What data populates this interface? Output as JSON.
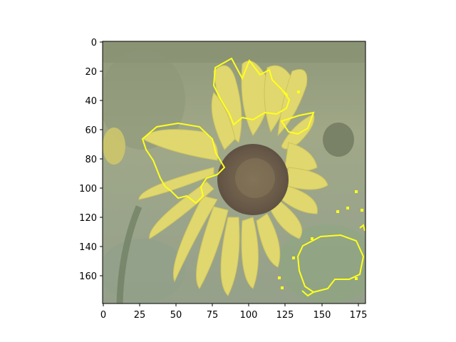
{
  "figure": {
    "x_ticks": [
      "0",
      "25",
      "50",
      "75",
      "100",
      "125",
      "150",
      "175"
    ],
    "y_ticks": [
      "0",
      "20",
      "40",
      "60",
      "80",
      "100",
      "120",
      "140",
      "160"
    ],
    "image": {
      "subject": "sunflower",
      "overlay": "yellow contour outlines",
      "colors": {
        "petals": "#dcd25a",
        "center": "#5a4a32",
        "background": "#8f9a72",
        "overlay_line": "#ffff00"
      }
    }
  }
}
